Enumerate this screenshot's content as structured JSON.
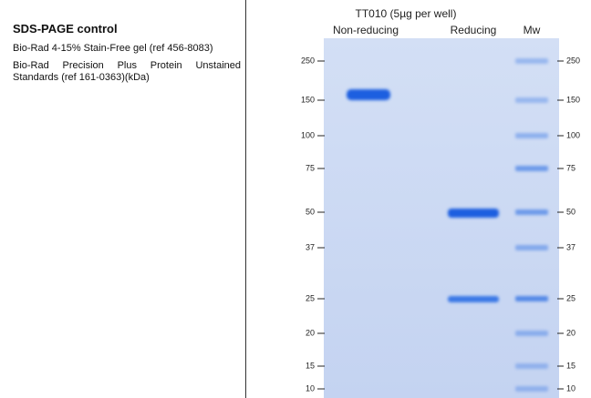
{
  "left_panel": {
    "title": "SDS-PAGE control",
    "lines": [
      "Bio-Rad 4-15% Stain-Free gel (ref 456-8083)",
      "Bio-Rad Precision Plus Protein Unstained Standards (ref 161-0363)(kDa)"
    ]
  },
  "gel": {
    "header": "TT010 (5µg per well)",
    "lanes": [
      "Non-reducing",
      "Reducing",
      "Mw"
    ],
    "marker_labels": [
      "250",
      "150",
      "100",
      "75",
      "50",
      "37",
      "25",
      "20",
      "15",
      "10"
    ]
  }
}
